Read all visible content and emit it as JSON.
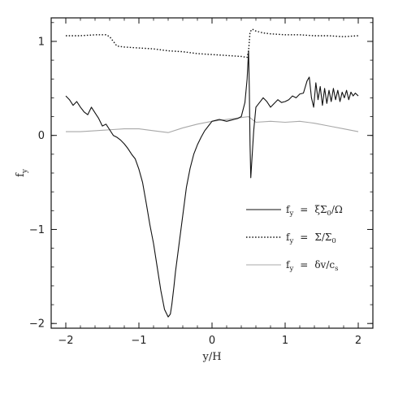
{
  "chart_data": {
    "type": "line",
    "title": "",
    "xlabel": "y/H",
    "ylabel": "f_y",
    "xlim": [
      -2.2,
      2.2
    ],
    "ylim": [
      -2.05,
      1.25
    ],
    "x_ticks": [
      -2,
      -1,
      0,
      1,
      2
    ],
    "y_ticks": [
      -2,
      -1,
      0,
      1
    ],
    "grid": false,
    "legend_position": "bottom-right",
    "series": [
      {
        "name": "f_y = ξΣ0/Ω",
        "style": "solid",
        "color": "#111111",
        "x": [
          -2.0,
          -1.95,
          -1.9,
          -1.85,
          -1.8,
          -1.75,
          -1.7,
          -1.65,
          -1.6,
          -1.55,
          -1.5,
          -1.45,
          -1.4,
          -1.35,
          -1.3,
          -1.25,
          -1.2,
          -1.15,
          -1.1,
          -1.05,
          -1.0,
          -0.95,
          -0.9,
          -0.85,
          -0.8,
          -0.75,
          -0.7,
          -0.65,
          -0.6,
          -0.57,
          -0.55,
          -0.52,
          -0.5,
          -0.45,
          -0.4,
          -0.35,
          -0.3,
          -0.25,
          -0.2,
          -0.15,
          -0.1,
          -0.05,
          0.0,
          0.05,
          0.1,
          0.15,
          0.2,
          0.25,
          0.3,
          0.35,
          0.4,
          0.45,
          0.48,
          0.5,
          0.51,
          0.52,
          0.53,
          0.55,
          0.57,
          0.6,
          0.65,
          0.7,
          0.75,
          0.8,
          0.85,
          0.9,
          0.95,
          1.0,
          1.05,
          1.1,
          1.15,
          1.2,
          1.25,
          1.3,
          1.33,
          1.36,
          1.39,
          1.42,
          1.45,
          1.48,
          1.51,
          1.54,
          1.57,
          1.6,
          1.63,
          1.66,
          1.69,
          1.72,
          1.75,
          1.78,
          1.81,
          1.84,
          1.87,
          1.9,
          1.93,
          1.96,
          2.0
        ],
        "y": [
          0.42,
          0.38,
          0.32,
          0.36,
          0.3,
          0.25,
          0.22,
          0.3,
          0.24,
          0.18,
          0.1,
          0.12,
          0.06,
          0.0,
          -0.02,
          -0.05,
          -0.09,
          -0.14,
          -0.2,
          -0.25,
          -0.36,
          -0.5,
          -0.72,
          -0.95,
          -1.15,
          -1.4,
          -1.65,
          -1.85,
          -1.93,
          -1.9,
          -1.8,
          -1.6,
          -1.45,
          -1.15,
          -0.85,
          -0.55,
          -0.35,
          -0.2,
          -0.1,
          -0.02,
          0.05,
          0.1,
          0.15,
          0.16,
          0.17,
          0.16,
          0.15,
          0.16,
          0.17,
          0.18,
          0.2,
          0.35,
          0.6,
          0.9,
          0.5,
          -0.1,
          -0.45,
          -0.2,
          0.05,
          0.3,
          0.35,
          0.4,
          0.36,
          0.3,
          0.34,
          0.38,
          0.35,
          0.36,
          0.38,
          0.42,
          0.4,
          0.44,
          0.45,
          0.58,
          0.62,
          0.4,
          0.3,
          0.56,
          0.38,
          0.52,
          0.32,
          0.5,
          0.34,
          0.48,
          0.36,
          0.5,
          0.38,
          0.48,
          0.36,
          0.46,
          0.4,
          0.48,
          0.38,
          0.46,
          0.42,
          0.45,
          0.42
        ]
      },
      {
        "name": "f_y = Σ/Σ0",
        "style": "dotted",
        "color": "#111111",
        "x": [
          -2.0,
          -1.8,
          -1.6,
          -1.45,
          -1.4,
          -1.35,
          -1.3,
          -1.2,
          -1.0,
          -0.8,
          -0.6,
          -0.4,
          -0.2,
          0.0,
          0.2,
          0.4,
          0.48,
          0.5,
          0.52,
          0.55,
          0.6,
          0.7,
          0.8,
          1.0,
          1.2,
          1.4,
          1.6,
          1.8,
          2.0
        ],
        "y": [
          1.06,
          1.06,
          1.07,
          1.07,
          1.05,
          1.0,
          0.95,
          0.94,
          0.93,
          0.92,
          0.9,
          0.89,
          0.87,
          0.86,
          0.85,
          0.84,
          0.83,
          0.9,
          1.1,
          1.13,
          1.11,
          1.09,
          1.08,
          1.07,
          1.07,
          1.06,
          1.06,
          1.05,
          1.06
        ]
      },
      {
        "name": "f_y = δv/cs",
        "style": "solid",
        "color": "#a8a8a8",
        "x": [
          -2.0,
          -1.8,
          -1.6,
          -1.4,
          -1.2,
          -1.0,
          -0.8,
          -0.6,
          -0.4,
          -0.2,
          0.0,
          0.2,
          0.4,
          0.5,
          0.6,
          0.8,
          1.0,
          1.2,
          1.4,
          1.6,
          1.8,
          2.0
        ],
        "y": [
          0.04,
          0.04,
          0.05,
          0.06,
          0.07,
          0.07,
          0.05,
          0.03,
          0.08,
          0.12,
          0.15,
          0.17,
          0.19,
          0.2,
          0.14,
          0.15,
          0.14,
          0.15,
          0.13,
          0.1,
          0.07,
          0.04
        ]
      }
    ],
    "legend": [
      {
        "prefix": "f",
        "prefix_sub": "y",
        "eq": "=",
        "main": "ξΣ",
        "main_sub": "0",
        "tail": "/Ω"
      },
      {
        "prefix": "f",
        "prefix_sub": "y",
        "eq": "=",
        "main": "Σ/Σ",
        "main_sub": "0",
        "tail": ""
      },
      {
        "prefix": "f",
        "prefix_sub": "y",
        "eq": "=",
        "main": "δv/c",
        "main_sub": "s",
        "tail": ""
      }
    ]
  }
}
